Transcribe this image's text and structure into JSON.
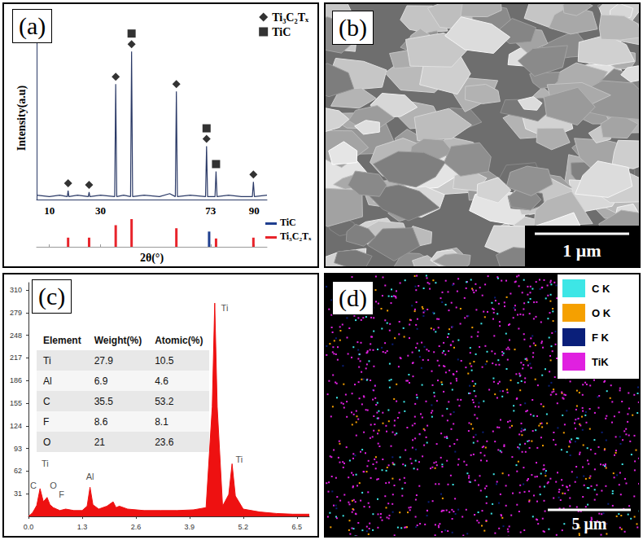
{
  "chart_data": [
    {
      "panel": "(a)",
      "type": "line",
      "color": "#2b3a67",
      "x_label": "2θ(°)",
      "y_label": "Intensity(a.u)",
      "x": [
        5,
        10,
        14,
        17.0,
        17.3,
        17.6,
        21,
        25.2,
        25.5,
        25.8,
        30,
        35.5,
        35.9,
        36.3,
        39,
        41.7,
        42.1,
        42.5,
        47,
        53,
        57,
        59.2,
        59.6,
        60,
        65,
        71.0,
        71.4,
        71.8,
        74.7,
        75.1,
        75.5,
        80,
        85,
        89.3,
        89.7,
        90.1,
        95
      ],
      "values": [
        3,
        2,
        3,
        2,
        6,
        2,
        3,
        2,
        5,
        2,
        3,
        2,
        78,
        2,
        3,
        2,
        100,
        2,
        3,
        2,
        4,
        2,
        73,
        2,
        3,
        2,
        36,
        2,
        2,
        19,
        2,
        3,
        2,
        2,
        12,
        2,
        3
      ],
      "xlim": [
        5,
        95
      ],
      "xticks": [
        10,
        30,
        73,
        90
      ],
      "ylim": [
        0,
        110
      ],
      "yticks": [],
      "tick_labels": "x",
      "grid": false,
      "legend": "top-right",
      "peak_markers": [
        {
          "name": "Ti₃C₂Tₓ",
          "marker": "diamond",
          "color": "#000000",
          "x": [
            17.3,
            25.5,
            35.9,
            42.1,
            59.6,
            71.4,
            89.7
          ]
        },
        {
          "name": "TiC",
          "marker": "square",
          "color": "#000000",
          "x": [
            42.1,
            71.4,
            75.1
          ]
        }
      ],
      "reference": {
        "ylim": [
          0,
          100
        ],
        "legend": "right",
        "series": [
          {
            "name": "TiC",
            "color": "#1f3f8f",
            "x": [
              72.4
            ],
            "values": [
              55
            ]
          },
          {
            "name": "Ti₃C₂Tₓ",
            "color": "#e8242b",
            "x": [
              17.3,
              25.5,
              35.9,
              42.1,
              59.6,
              75.1,
              89.7
            ],
            "values": [
              33,
              33,
              78,
              100,
              67,
              30,
              33
            ]
          }
        ]
      }
    },
    {
      "panel": "(c)",
      "type": "line",
      "color": "#ee1111",
      "x": [
        0,
        0.1,
        0.2,
        0.28,
        0.36,
        0.45,
        0.52,
        0.6,
        0.68,
        0.76,
        0.9,
        1.1,
        1.3,
        1.42,
        1.49,
        1.56,
        1.7,
        1.9,
        2.05,
        2.12,
        2.2,
        2.4,
        2.8,
        3.2,
        3.6,
        4.0,
        4.3,
        4.45,
        4.51,
        4.57,
        4.7,
        4.85,
        4.93,
        5.01,
        5.2,
        5.6,
        6.0,
        6.4,
        6.8
      ],
      "values": [
        0,
        5,
        15,
        38,
        20,
        26,
        16,
        12,
        10,
        8,
        10,
        8,
        8,
        14,
        40,
        16,
        10,
        14,
        20,
        12,
        14,
        10,
        8,
        8,
        8,
        9,
        12,
        150,
        292,
        150,
        14,
        30,
        72,
        28,
        10,
        6,
        4,
        3,
        3
      ],
      "xlim": [
        0,
        6.8
      ],
      "xticks": [
        {
          "value": 0,
          "label": "0.0"
        },
        1.3,
        2.6,
        3.9,
        5.2,
        6.5
      ],
      "ylim": [
        0,
        320
      ],
      "yticks": [
        31,
        62,
        93,
        124,
        155,
        186,
        217,
        248,
        279,
        310
      ],
      "grid": false,
      "annotations": [
        {
          "text": "C",
          "x": 0.12,
          "y": 42
        },
        {
          "text": "Ti",
          "x": 0.4,
          "y": 72
        },
        {
          "text": "O",
          "x": 0.6,
          "y": 42
        },
        {
          "text": "F",
          "x": 0.8,
          "y": 30
        },
        {
          "text": "Al",
          "x": 1.49,
          "y": 55
        },
        {
          "text": "Ti",
          "x": 4.75,
          "y": 285
        },
        {
          "text": "Ti",
          "x": 5.1,
          "y": 78
        }
      ],
      "table": {
        "header": [
          "Element",
          "Weight(%)",
          "Atomic(%)"
        ],
        "rows": [
          [
            "Ti",
            27.9,
            10.5
          ],
          [
            "Al",
            6.9,
            4.6
          ],
          [
            "C",
            35.5,
            53.2
          ],
          [
            "F",
            8.6,
            8.1
          ],
          [
            "O",
            21,
            23.6
          ]
        ]
      }
    }
  ],
  "sem_image": {
    "panel": "(b)",
    "scale_bar": "1 μm"
  },
  "eds_map": {
    "panel": "(d)",
    "scale_bar": "5 μm",
    "elements": [
      {
        "name": "C K",
        "color": "#3de6e6"
      },
      {
        "name": "O K",
        "color": "#f5a000"
      },
      {
        "name": "F K",
        "color": "#0a1f7a"
      },
      {
        "name": "TiK",
        "color": "#e020e0"
      }
    ]
  }
}
